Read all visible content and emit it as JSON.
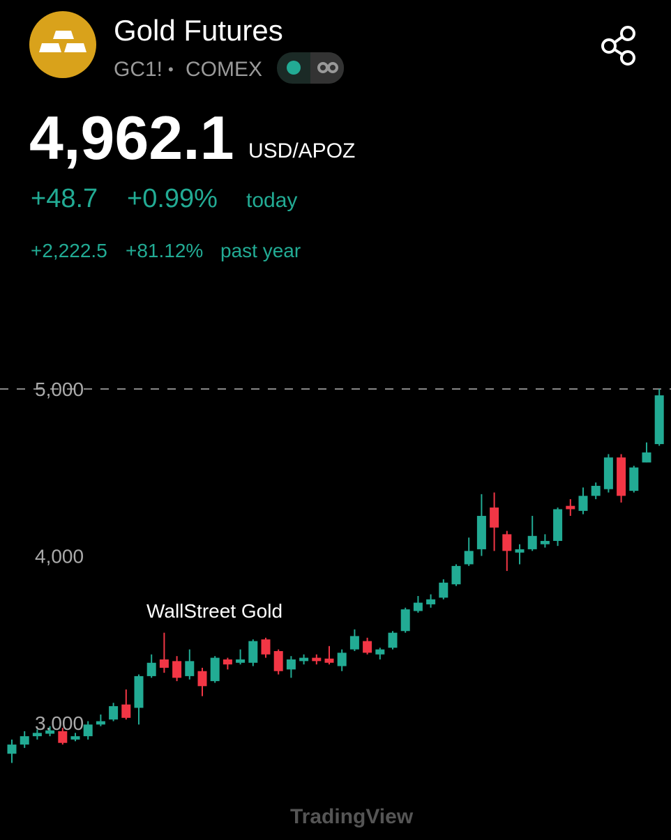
{
  "header": {
    "title": "Gold Futures",
    "symbol": "GC1!",
    "separator": "•",
    "exchange": "COMEX"
  },
  "quote": {
    "price": "4,962.1",
    "unit": "USD/APOZ",
    "change": "+48.7",
    "change_percent": "+0.99%",
    "change_period": "today",
    "year_change": "+2,222.5",
    "year_change_percent": "+81.12%",
    "year_period": "past year"
  },
  "chart_data": {
    "type": "candlestick",
    "annotation": "WallStreet Gold",
    "watermark": "TradingView",
    "up_color": "#22ab94",
    "down_color": "#f23645",
    "ylim": [
      2695,
      5326
    ],
    "yticks": [
      {
        "value": 5000,
        "label": "5,000"
      },
      {
        "value": 4000,
        "label": "4,000"
      },
      {
        "value": 3000,
        "label": "3,000"
      }
    ],
    "price_line": 5000,
    "open": [
      2815,
      2870,
      2920,
      2935,
      2950,
      2900,
      2920,
      2990,
      3020,
      3110,
      3090,
      3280,
      3380,
      3370,
      3280,
      3310,
      3250,
      3380,
      3360,
      3360,
      3500,
      3430,
      3320,
      3370,
      3390,
      3385,
      3340,
      3440,
      3490,
      3410,
      3450,
      3550,
      3670,
      3710,
      3750,
      3830,
      3950,
      4040,
      4290,
      4130,
      4020,
      4040,
      4070,
      4090,
      4300,
      4270,
      4360,
      4400,
      4590,
      4390,
      4560,
      4670
    ],
    "high": [
      2900,
      2950,
      2960,
      2980,
      2970,
      2940,
      3010,
      3050,
      3120,
      3200,
      3290,
      3410,
      3540,
      3400,
      3440,
      3330,
      3400,
      3390,
      3440,
      3500,
      3510,
      3440,
      3400,
      3410,
      3410,
      3460,
      3440,
      3560,
      3510,
      3450,
      3550,
      3690,
      3760,
      3770,
      3860,
      3950,
      4110,
      4370,
      4380,
      4150,
      4070,
      4240,
      4130,
      4290,
      4340,
      4410,
      4440,
      4610,
      4610,
      4540,
      4680,
      5000
    ],
    "low": [
      2760,
      2850,
      2900,
      2920,
      2870,
      2890,
      2900,
      2980,
      3010,
      3020,
      2990,
      3270,
      3300,
      3250,
      3260,
      3160,
      3240,
      3320,
      3350,
      3340,
      3390,
      3290,
      3270,
      3350,
      3350,
      3350,
      3310,
      3430,
      3410,
      3380,
      3440,
      3540,
      3660,
      3690,
      3740,
      3820,
      3940,
      4000,
      4030,
      3910,
      3950,
      4030,
      4050,
      4060,
      4240,
      4250,
      4340,
      4380,
      4320,
      4380,
      4560,
      4660
    ],
    "close": [
      2870,
      2920,
      2940,
      2955,
      2880,
      2920,
      2990,
      3010,
      3100,
      3030,
      3280,
      3360,
      3330,
      3270,
      3370,
      3220,
      3390,
      3350,
      3380,
      3490,
      3410,
      3310,
      3380,
      3390,
      3370,
      3360,
      3420,
      3520,
      3420,
      3440,
      3540,
      3680,
      3720,
      3740,
      3840,
      3940,
      4030,
      4240,
      4170,
      4030,
      4040,
      4120,
      4090,
      4280,
      4280,
      4360,
      4420,
      4590,
      4360,
      4530,
      4620,
      4962.1
    ]
  }
}
